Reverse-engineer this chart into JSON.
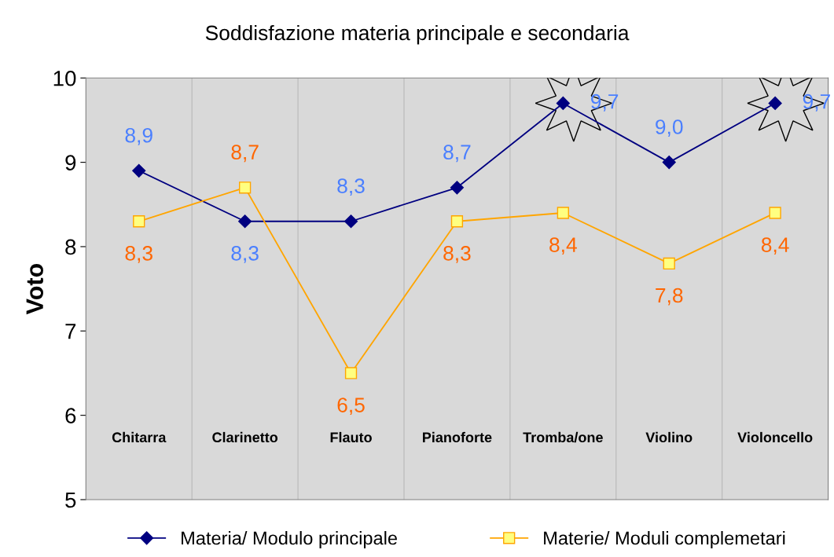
{
  "chart_data": {
    "type": "line",
    "title": "Soddisfazione materia principale e secondaria",
    "ylabel": "Voto",
    "categories": [
      "Chitarra",
      "Clarinetto",
      "Flauto",
      "Pianoforte",
      "Tromba/one",
      "Violino",
      "Violoncello"
    ],
    "series": [
      {
        "name": "Materia/ Modulo principale",
        "color": "#000080",
        "marker": "diamond",
        "values": [
          8.9,
          8.3,
          8.3,
          8.7,
          9.7,
          9.0,
          9.7
        ],
        "value_labels": [
          "8,9",
          "8,3",
          "8,3",
          "8,7",
          "9,7",
          "9,0",
          "9,7"
        ]
      },
      {
        "name": "Materie/ Moduli complemetari",
        "color": "#ffa500",
        "marker": "square",
        "values": [
          8.3,
          8.7,
          6.5,
          8.3,
          8.4,
          7.8,
          8.4
        ],
        "value_labels": [
          "8,3",
          "8,7",
          "6,5",
          "8,3",
          "8,4",
          "7,8",
          "8,4"
        ]
      }
    ],
    "ylim": [
      5,
      10
    ],
    "yticks": [
      5,
      6,
      7,
      8,
      9,
      10
    ],
    "grid": "x",
    "legend": "bottom"
  }
}
